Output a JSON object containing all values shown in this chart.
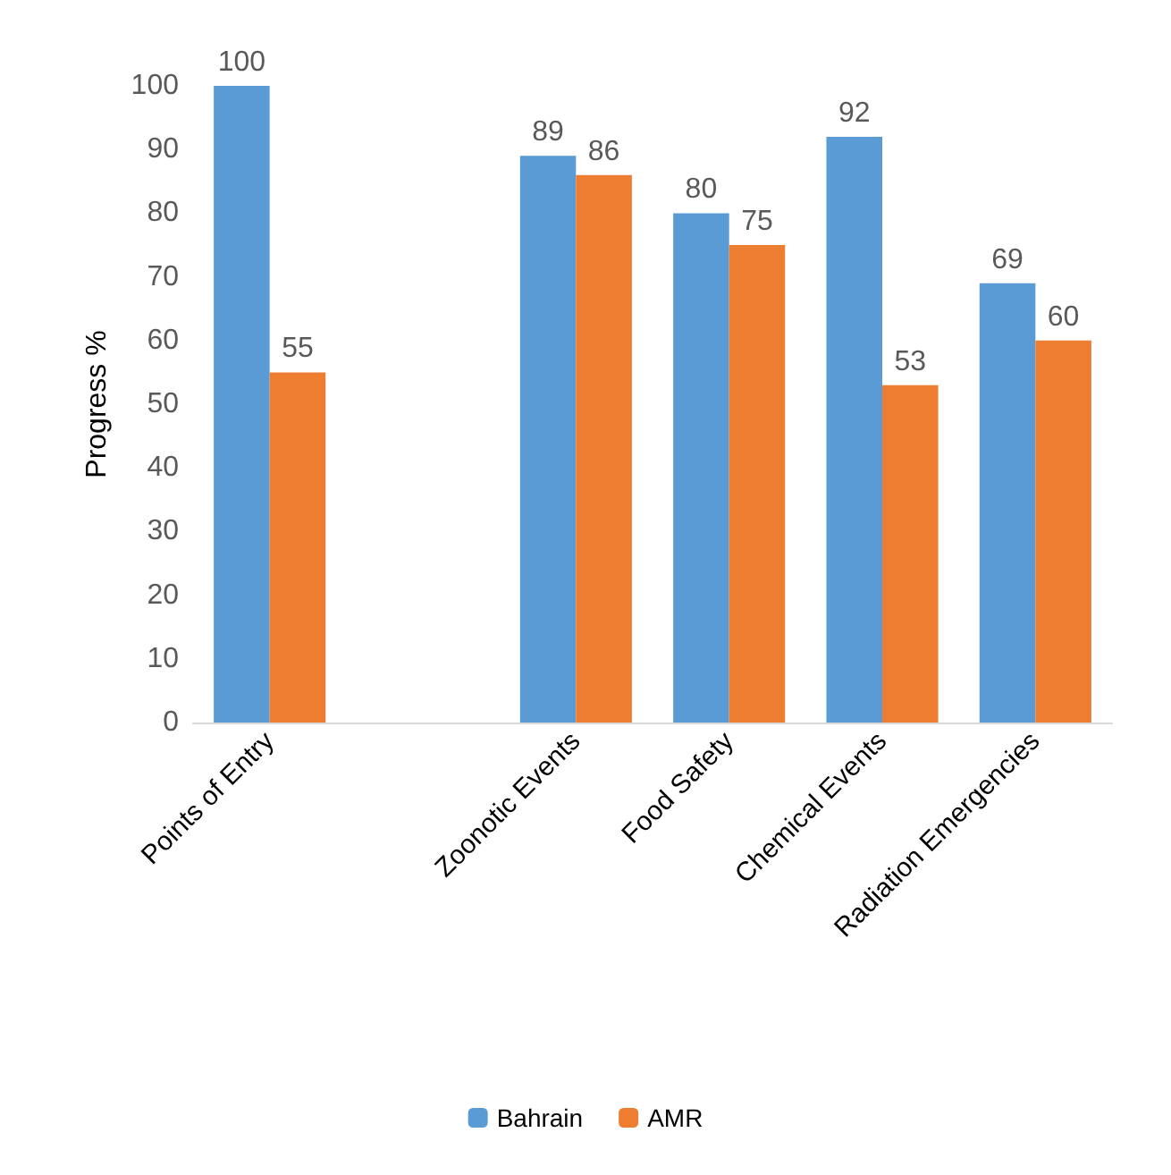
{
  "chart_data": {
    "type": "bar",
    "ylabel": "Progress %",
    "categories": [
      "Points of Entry",
      null,
      "Zoonotic Events",
      "Food Safety",
      "Chemical Events",
      "Radiation Emergencies"
    ],
    "series": [
      {
        "name": "Bahrain",
        "color": "#5b9bd5",
        "values": [
          100,
          null,
          89,
          80,
          92,
          69
        ]
      },
      {
        "name": "AMR",
        "color": "#ed7d31",
        "values": [
          55,
          null,
          86,
          75,
          53,
          60
        ]
      }
    ],
    "ylim": [
      0,
      100
    ],
    "yticks": [
      0,
      10,
      20,
      30,
      40,
      50,
      60,
      70,
      80,
      90,
      100
    ],
    "grid": false,
    "legend": "bottom",
    "data_labels": true
  }
}
